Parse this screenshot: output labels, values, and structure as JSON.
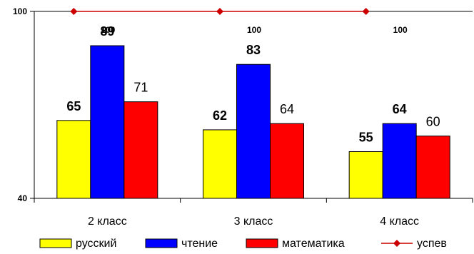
{
  "chart_data": {
    "type": "bar",
    "categories": [
      "2 класс",
      "3 класс",
      "4 класс"
    ],
    "ylim": [
      40,
      100
    ],
    "yticks": [
      40,
      100
    ],
    "grid": false,
    "legend_position": "bottom",
    "series": [
      {
        "name": "русский",
        "color": "#ffff00",
        "values": [
          65,
          62,
          55
        ],
        "label_style": "bold"
      },
      {
        "name": "чтение",
        "color": "#0000ff",
        "values": [
          89,
          83,
          64
        ],
        "label_style": "bold"
      },
      {
        "name": "математика",
        "color": "#ff0000",
        "values": [
          71,
          64,
          60
        ],
        "label_style": "normal"
      }
    ],
    "line_series": {
      "name": "успев",
      "color": "#cc0000",
      "values": [
        100,
        100,
        100
      ],
      "labels": [
        "100",
        "100",
        "100"
      ]
    }
  }
}
